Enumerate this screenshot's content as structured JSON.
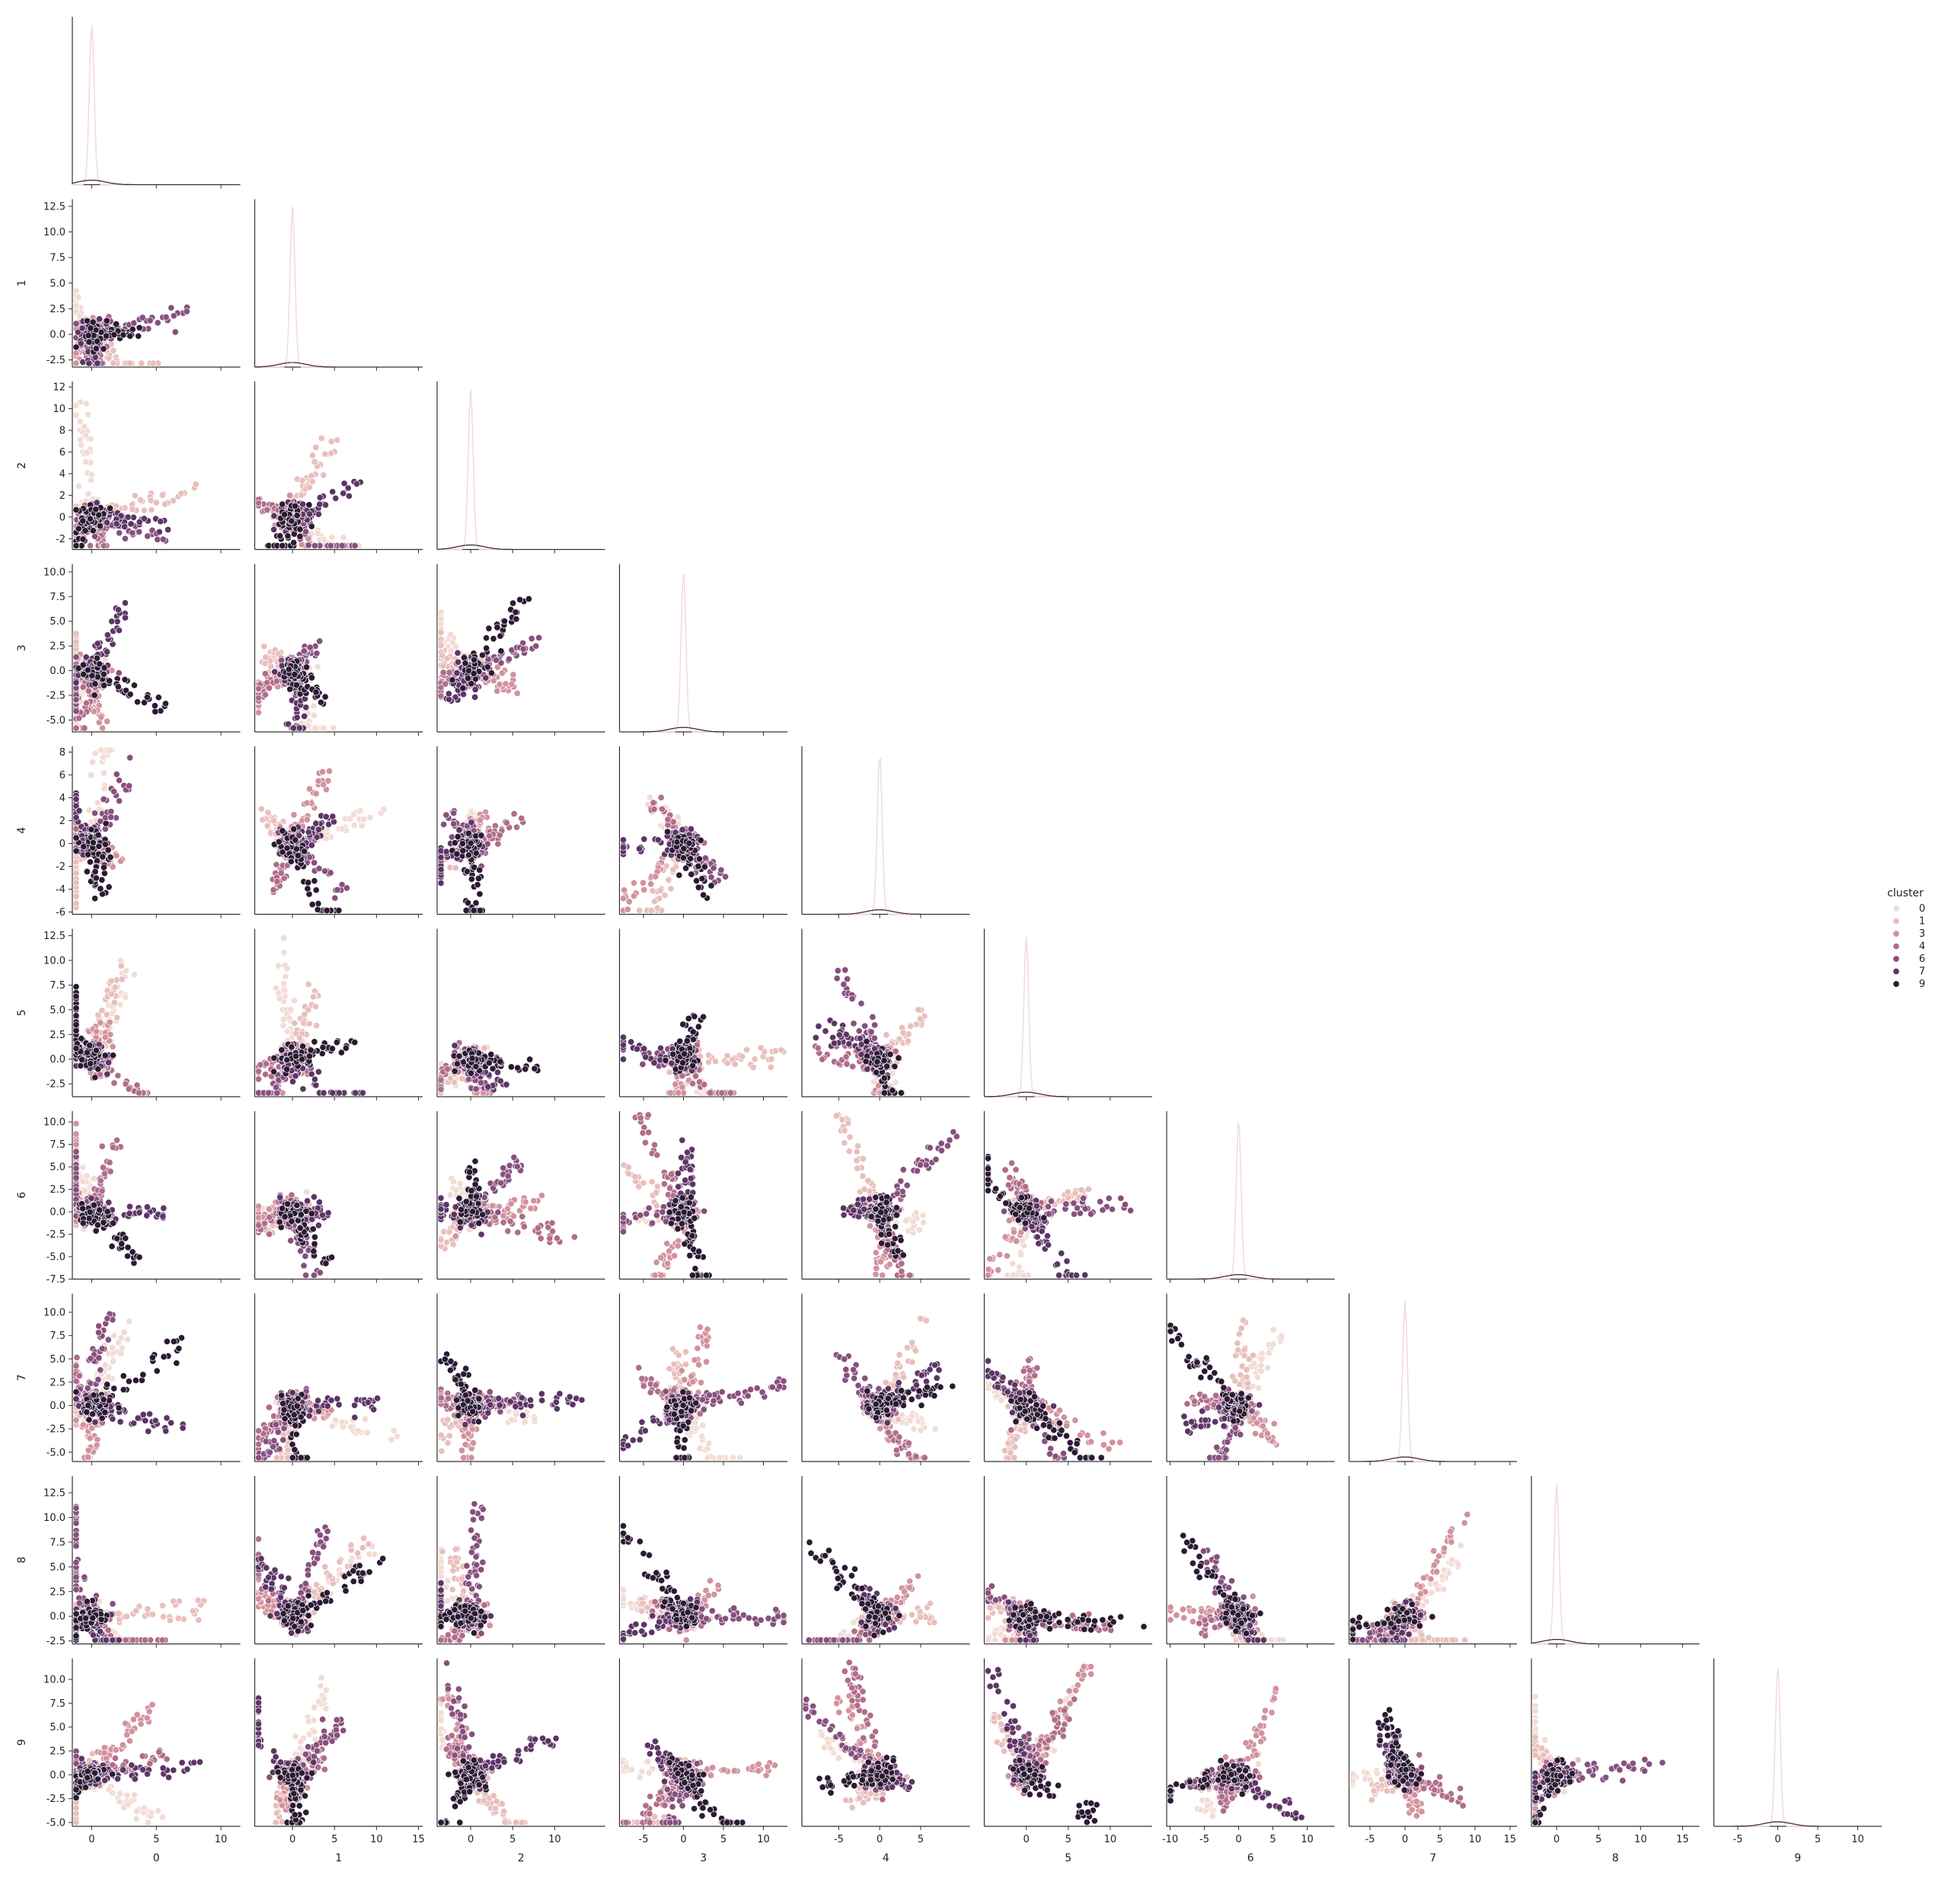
{
  "chart_data": {
    "type": "scatter",
    "hue_title": "cluster",
    "variables": [
      "0",
      "1",
      "2",
      "3",
      "4",
      "5",
      "6",
      "7",
      "8",
      "9"
    ],
    "legend": {
      "placement": "right",
      "title": "cluster",
      "entries": [
        {
          "label": "0",
          "color": "#f2dcd5"
        },
        {
          "label": "1",
          "color": "#e8bfbc"
        },
        {
          "label": "3",
          "color": "#d1929d"
        },
        {
          "label": "4",
          "color": "#b06d8a"
        },
        {
          "label": "6",
          "color": "#87507e"
        },
        {
          "label": "7",
          "color": "#5c3565"
        },
        {
          "label": "9",
          "color": "#2b1a33"
        }
      ]
    },
    "axes": [
      {
        "var": "0",
        "lim": [
          -1.5,
          11.5
        ],
        "ticks": [
          0,
          5,
          10
        ],
        "tick_labels": [
          "0",
          "5",
          "10"
        ]
      },
      {
        "var": "1",
        "lim": [
          -3.2,
          13.2
        ],
        "ticks": [
          -2.5,
          0.0,
          2.5,
          5.0,
          7.5,
          10.0,
          12.5
        ],
        "tick_labels": [
          "-2.5",
          "0.0",
          "2.5",
          "5.0",
          "7.5",
          "10.0",
          "12.5"
        ],
        "x_ticks": [
          0,
          5,
          10,
          15
        ],
        "x_tick_labels": [
          "0",
          "5",
          "10",
          "15"
        ],
        "xlim": [
          -4.5,
          15.5
        ]
      },
      {
        "var": "2",
        "lim": [
          -3.0,
          12.5
        ],
        "ticks": [
          -2,
          0,
          2,
          4,
          6,
          8,
          10,
          12
        ],
        "tick_labels": [
          "-2",
          "0",
          "2",
          "4",
          "6",
          "8",
          "10",
          "12"
        ],
        "x_ticks": [
          0,
          5,
          10
        ],
        "x_tick_labels": [
          "0",
          "5",
          "10"
        ],
        "xlim": [
          -4,
          16
        ]
      },
      {
        "var": "3",
        "lim": [
          -6.2,
          10.8
        ],
        "ticks": [
          -5.0,
          -2.5,
          0.0,
          2.5,
          5.0,
          7.5,
          10.0
        ],
        "tick_labels": [
          "-5.0",
          "-2.5",
          "0.0",
          "2.5",
          "5.0",
          "7.5",
          "10.0"
        ],
        "x_ticks": [
          -5,
          0,
          5,
          10
        ],
        "x_tick_labels": [
          "-5",
          "0",
          "5",
          "10"
        ],
        "xlim": [
          -8,
          13
        ]
      },
      {
        "var": "4",
        "lim": [
          -6.2,
          8.5
        ],
        "ticks": [
          -6,
          -4,
          -2,
          0,
          2,
          4,
          6,
          8
        ],
        "tick_labels": [
          "-6",
          "-4",
          "-2",
          "0",
          "2",
          "4",
          "6",
          "8"
        ],
        "x_ticks": [
          -5,
          0,
          5
        ],
        "x_tick_labels": [
          "-5",
          "0",
          "5"
        ],
        "xlim": [
          -9.5,
          11
        ]
      },
      {
        "var": "5",
        "lim": [
          -3.8,
          13.2
        ],
        "ticks": [
          -2.5,
          0.0,
          2.5,
          5.0,
          7.5,
          10.0,
          12.5
        ],
        "tick_labels": [
          "-2.5",
          "0.0",
          "2.5",
          "5.0",
          "7.5",
          "10.0",
          "12.5"
        ],
        "x_ticks": [
          0,
          5,
          10
        ],
        "x_tick_labels": [
          "0",
          "5",
          "10"
        ],
        "xlim": [
          -5,
          15
        ]
      },
      {
        "var": "6",
        "lim": [
          -7.5,
          11.2
        ],
        "ticks": [
          -7.5,
          -5.0,
          -2.5,
          0.0,
          2.5,
          5.0,
          7.5,
          10.0
        ],
        "tick_labels": [
          "-7.5",
          "-5.0",
          "-2.5",
          "0.0",
          "2.5",
          "5.0",
          "7.5",
          "10.0"
        ],
        "x_ticks": [
          -10,
          -5,
          0,
          5,
          10
        ],
        "x_tick_labels": [
          "-10",
          "-5",
          "0",
          "5",
          "10"
        ],
        "xlim": [
          -10.5,
          14
        ]
      },
      {
        "var": "7",
        "lim": [
          -6.0,
          12.0
        ],
        "ticks": [
          -5.0,
          -2.5,
          0.0,
          2.5,
          5.0,
          7.5,
          10.0
        ],
        "tick_labels": [
          "-5.0",
          "-2.5",
          "0.0",
          "2.5",
          "5.0",
          "7.5",
          "10.0"
        ],
        "x_ticks": [
          -5,
          0,
          5,
          10,
          15
        ],
        "x_tick_labels": [
          "-5",
          "0",
          "5",
          "10",
          "15"
        ],
        "xlim": [
          -8,
          16
        ]
      },
      {
        "var": "8",
        "lim": [
          -2.8,
          14.2
        ],
        "ticks": [
          -2.5,
          0.0,
          2.5,
          5.0,
          7.5,
          10.0,
          12.5
        ],
        "tick_labels": [
          "-2.5",
          "0.0",
          "2.5",
          "5.0",
          "7.5",
          "10.0",
          "12.5"
        ],
        "x_ticks": [
          0,
          5,
          10,
          15
        ],
        "x_tick_labels": [
          "0",
          "5",
          "10",
          "15"
        ],
        "xlim": [
          -3,
          17
        ]
      },
      {
        "var": "9",
        "lim": [
          -5.4,
          12.2
        ],
        "ticks": [
          -5.0,
          -2.5,
          0.0,
          2.5,
          5.0,
          7.5,
          10.0
        ],
        "tick_labels": [
          "-5.0",
          "-2.5",
          "0.0",
          "2.5",
          "5.0",
          "7.5",
          "10.0"
        ],
        "x_ticks": [
          -5,
          0,
          5,
          10
        ],
        "x_tick_labels": [
          "-5",
          "0",
          "5",
          "10"
        ],
        "xlim": [
          -8,
          13
        ]
      }
    ],
    "diagonal": "kde",
    "corner": true,
    "grid": false
  }
}
